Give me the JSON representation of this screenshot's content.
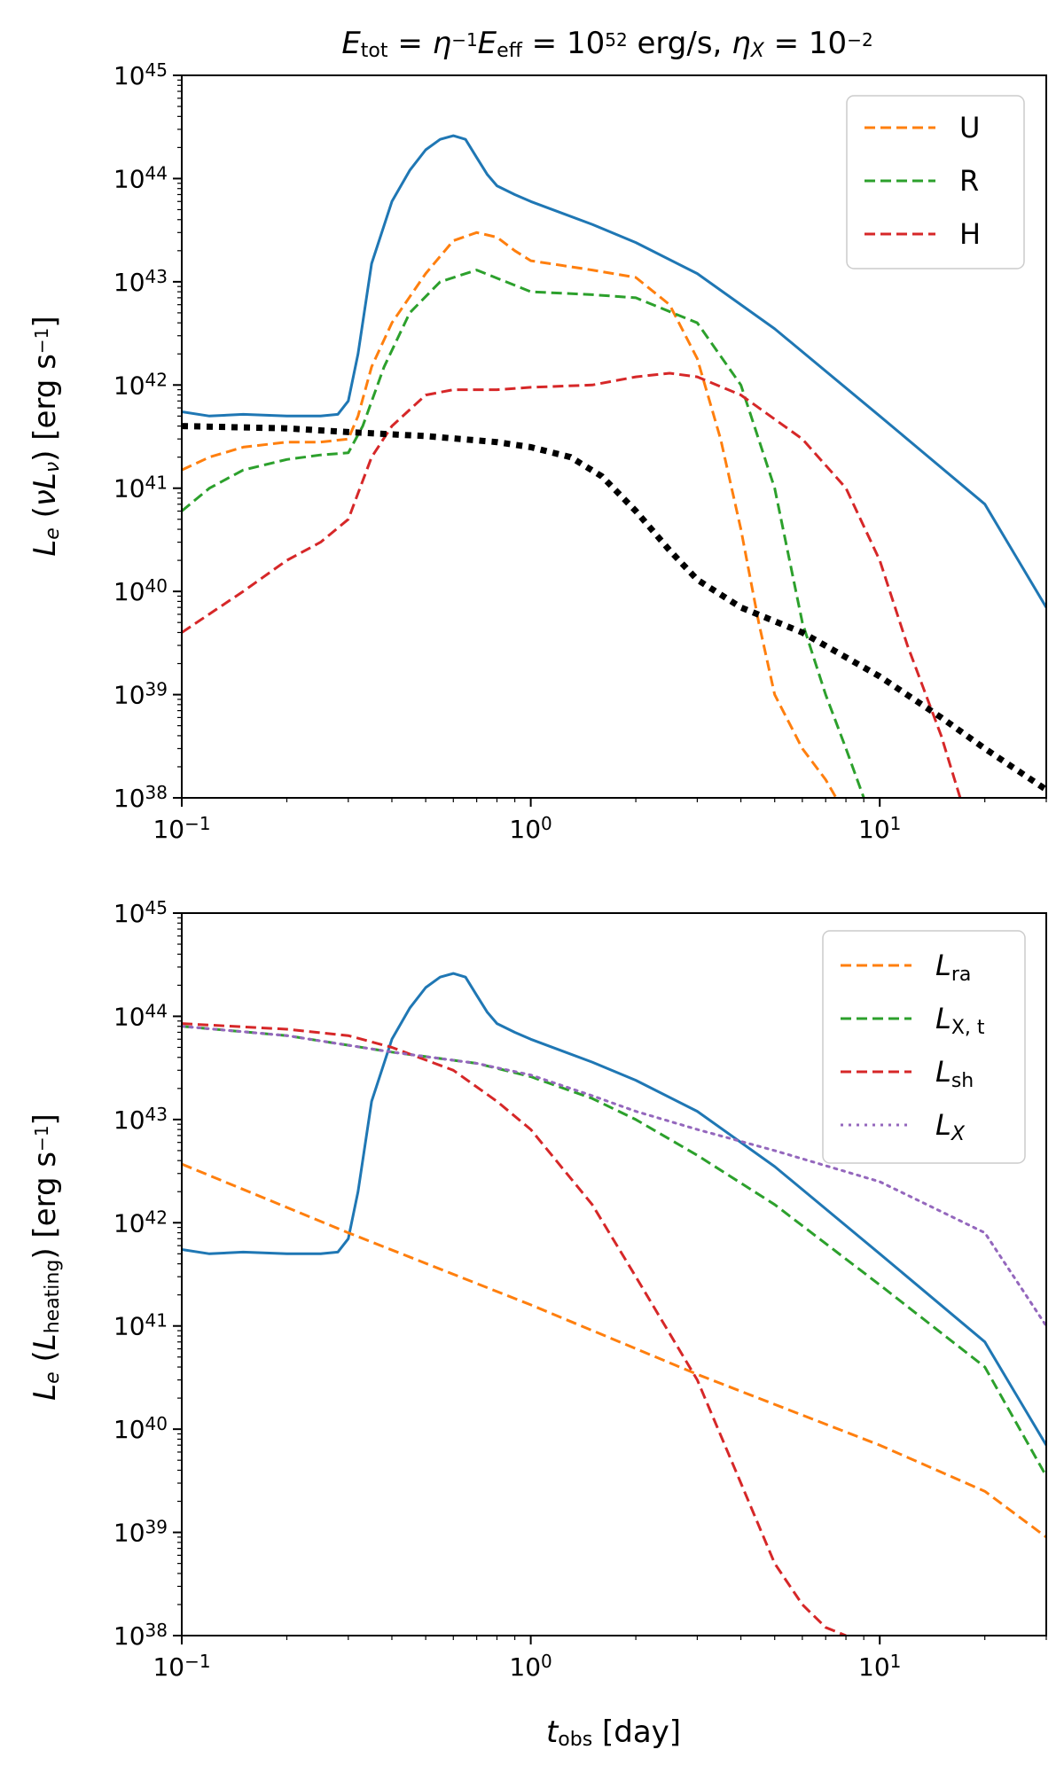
{
  "chart_data": [
    {
      "type": "line",
      "id": "top",
      "title": "E_tot = η^{-1} E_eff = 10^52 erg/s,  η_X = 10^-2",
      "title_parts": {
        "E": "E",
        "tot": "tot",
        "eq": " = ",
        "eta": "η",
        "inv": "−1",
        "Eff": "E",
        "eff": "eff",
        "eq2": " = 10",
        "exp52": "52",
        "unit": " erg/s,  ",
        "etaX": "η",
        "X": "X",
        "eq3": " = 10",
        "expm2": "−2"
      },
      "xscale": "log",
      "yscale": "log",
      "xlim": [
        0.1,
        30
      ],
      "ylim": [
        1e+38,
        1e+45
      ],
      "xlabel": "",
      "ylabel": "L_e (νL_ν) [erg s^-1]",
      "ylabel_parts": {
        "L": "L",
        "e": "e",
        "open": " (",
        "nu": "ν",
        "L2": "L",
        "nusub": "ν",
        "close": ") [erg s",
        "exp": "−1",
        "end": "]"
      },
      "x_ticks": [
        {
          "base": "10",
          "exp": "−1"
        },
        {
          "base": "10",
          "exp": "0"
        },
        {
          "base": "10",
          "exp": "1"
        }
      ],
      "y_ticks": [
        {
          "base": "10",
          "exp": "38"
        },
        {
          "base": "10",
          "exp": "39"
        },
        {
          "base": "10",
          "exp": "40"
        },
        {
          "base": "10",
          "exp": "41"
        },
        {
          "base": "10",
          "exp": "42"
        },
        {
          "base": "10",
          "exp": "43"
        },
        {
          "base": "10",
          "exp": "44"
        },
        {
          "base": "10",
          "exp": "45"
        }
      ],
      "legend_position": "top-right",
      "series": [
        {
          "name": "total",
          "legend": false,
          "color": "#1f77b4",
          "style": "solid",
          "points": [
            [
              0.1,
              5.5e+41
            ],
            [
              0.12,
              5e+41
            ],
            [
              0.15,
              5.2e+41
            ],
            [
              0.2,
              5e+41
            ],
            [
              0.25,
              5e+41
            ],
            [
              0.28,
              5.2e+41
            ],
            [
              0.3,
              7e+41
            ],
            [
              0.32,
              2e+42
            ],
            [
              0.35,
              1.5e+43
            ],
            [
              0.4,
              6e+43
            ],
            [
              0.45,
              1.2e+44
            ],
            [
              0.5,
              1.9e+44
            ],
            [
              0.55,
              2.4e+44
            ],
            [
              0.6,
              2.6e+44
            ],
            [
              0.65,
              2.4e+44
            ],
            [
              0.7,
              1.6e+44
            ],
            [
              0.75,
              1.1e+44
            ],
            [
              0.8,
              8.5e+43
            ],
            [
              0.9,
              7e+43
            ],
            [
              1.0,
              6e+43
            ],
            [
              1.5,
              3.6e+43
            ],
            [
              2.0,
              2.4e+43
            ],
            [
              3.0,
              1.2e+43
            ],
            [
              5.0,
              3.5e+42
            ],
            [
              10,
              5e+41
            ],
            [
              20,
              7e+40
            ],
            [
              30,
              7e+39
            ]
          ]
        },
        {
          "name": "U",
          "legend": true,
          "color": "#ff7f0e",
          "style": "dashed",
          "points": [
            [
              0.1,
              1.5e+41
            ],
            [
              0.12,
              2e+41
            ],
            [
              0.15,
              2.5e+41
            ],
            [
              0.2,
              2.8e+41
            ],
            [
              0.25,
              2.8e+41
            ],
            [
              0.3,
              3e+41
            ],
            [
              0.32,
              5e+41
            ],
            [
              0.35,
              1.5e+42
            ],
            [
              0.4,
              4e+42
            ],
            [
              0.5,
              1.2e+43
            ],
            [
              0.6,
              2.5e+43
            ],
            [
              0.7,
              3e+43
            ],
            [
              0.8,
              2.7e+43
            ],
            [
              0.9,
              2e+43
            ],
            [
              1.0,
              1.6e+43
            ],
            [
              1.5,
              1.3e+43
            ],
            [
              2.0,
              1.1e+43
            ],
            [
              2.5,
              6e+42
            ],
            [
              3.0,
              1.8e+42
            ],
            [
              3.5,
              3e+41
            ],
            [
              4.0,
              4e+40
            ],
            [
              4.5,
              5e+39
            ],
            [
              5.0,
              1e+39
            ],
            [
              6.0,
              3e+38
            ],
            [
              7.0,
              1.5e+38
            ],
            [
              7.5,
              1e+38
            ]
          ]
        },
        {
          "name": "R",
          "legend": true,
          "color": "#2ca02c",
          "style": "dashed",
          "points": [
            [
              0.1,
              6e+40
            ],
            [
              0.12,
              1e+41
            ],
            [
              0.15,
              1.5e+41
            ],
            [
              0.2,
              1.9e+41
            ],
            [
              0.25,
              2.1e+41
            ],
            [
              0.3,
              2.2e+41
            ],
            [
              0.33,
              4e+41
            ],
            [
              0.38,
              1.5e+42
            ],
            [
              0.45,
              5e+42
            ],
            [
              0.55,
              1e+43
            ],
            [
              0.7,
              1.3e+43
            ],
            [
              0.85,
              1e+43
            ],
            [
              1.0,
              8e+42
            ],
            [
              1.5,
              7.5e+42
            ],
            [
              2.0,
              7e+42
            ],
            [
              3.0,
              4e+42
            ],
            [
              4.0,
              1e+42
            ],
            [
              5.0,
              1e+41
            ],
            [
              6.0,
              5e+39
            ],
            [
              7.0,
              1e+39
            ],
            [
              8.0,
              3e+38
            ],
            [
              9.0,
              1e+38
            ]
          ]
        },
        {
          "name": "H",
          "legend": true,
          "color": "#d62728",
          "style": "dashed",
          "points": [
            [
              0.1,
              4e+39
            ],
            [
              0.15,
              1e+40
            ],
            [
              0.2,
              2e+40
            ],
            [
              0.25,
              3e+40
            ],
            [
              0.3,
              5e+40
            ],
            [
              0.35,
              2e+41
            ],
            [
              0.4,
              4e+41
            ],
            [
              0.5,
              8e+41
            ],
            [
              0.6,
              9e+41
            ],
            [
              0.8,
              9e+41
            ],
            [
              1.0,
              9.5e+41
            ],
            [
              1.5,
              1e+42
            ],
            [
              2.0,
              1.2e+42
            ],
            [
              2.5,
              1.3e+42
            ],
            [
              3.0,
              1.2e+42
            ],
            [
              4.0,
              8e+41
            ],
            [
              6.0,
              3e+41
            ],
            [
              8.0,
              1e+41
            ],
            [
              10,
              2e+40
            ],
            [
              12,
              3e+39
            ],
            [
              15,
              4e+38
            ],
            [
              17,
              1e+38
            ]
          ]
        },
        {
          "name": "thermal",
          "legend": false,
          "color": "#000000",
          "style": "dotted",
          "points": [
            [
              0.1,
              4e+41
            ],
            [
              0.2,
              3.8e+41
            ],
            [
              0.3,
              3.5e+41
            ],
            [
              0.5,
              3.2e+41
            ],
            [
              0.8,
              2.8e+41
            ],
            [
              1.0,
              2.5e+41
            ],
            [
              1.3,
              2e+41
            ],
            [
              1.6,
              1.3e+41
            ],
            [
              2.0,
              6e+40
            ],
            [
              2.5,
              2.5e+40
            ],
            [
              3.0,
              1.3e+40
            ],
            [
              4.0,
              7e+39
            ],
            [
              6.0,
              4e+39
            ],
            [
              10,
              1.5e+39
            ],
            [
              15,
              6e+38
            ],
            [
              20,
              3e+38
            ],
            [
              30,
              1.2e+38
            ]
          ]
        }
      ],
      "legend_labels": {
        "U": "U",
        "R": "R",
        "H": "H"
      }
    },
    {
      "type": "line",
      "id": "bottom",
      "title": "",
      "xscale": "log",
      "yscale": "log",
      "xlim": [
        0.1,
        30
      ],
      "ylim": [
        1e+38,
        1e+45
      ],
      "xlabel": "t_obs [day]",
      "xlabel_parts": {
        "t": "t",
        "sub": "obs",
        "rest": " [day]"
      },
      "ylabel": "L_e (L_heating) [erg s^-1]",
      "ylabel_parts": {
        "L": "L",
        "e": "e",
        "open": " (",
        "L2": "L",
        "sub": "heating",
        "close": ") [erg s",
        "exp": "−1",
        "end": "]"
      },
      "x_ticks": [
        {
          "base": "10",
          "exp": "−1"
        },
        {
          "base": "10",
          "exp": "0"
        },
        {
          "base": "10",
          "exp": "1"
        }
      ],
      "y_ticks": [
        {
          "base": "10",
          "exp": "38"
        },
        {
          "base": "10",
          "exp": "39"
        },
        {
          "base": "10",
          "exp": "40"
        },
        {
          "base": "10",
          "exp": "41"
        },
        {
          "base": "10",
          "exp": "42"
        },
        {
          "base": "10",
          "exp": "43"
        },
        {
          "base": "10",
          "exp": "44"
        },
        {
          "base": "10",
          "exp": "45"
        }
      ],
      "legend_position": "top-right",
      "series": [
        {
          "name": "total",
          "legend": false,
          "color": "#1f77b4",
          "style": "solid",
          "points": [
            [
              0.1,
              5.5e+41
            ],
            [
              0.12,
              5e+41
            ],
            [
              0.15,
              5.2e+41
            ],
            [
              0.2,
              5e+41
            ],
            [
              0.25,
              5e+41
            ],
            [
              0.28,
              5.2e+41
            ],
            [
              0.3,
              7e+41
            ],
            [
              0.32,
              2e+42
            ],
            [
              0.35,
              1.5e+43
            ],
            [
              0.4,
              6e+43
            ],
            [
              0.45,
              1.2e+44
            ],
            [
              0.5,
              1.9e+44
            ],
            [
              0.55,
              2.4e+44
            ],
            [
              0.6,
              2.6e+44
            ],
            [
              0.65,
              2.4e+44
            ],
            [
              0.7,
              1.6e+44
            ],
            [
              0.75,
              1.1e+44
            ],
            [
              0.8,
              8.5e+43
            ],
            [
              0.9,
              7e+43
            ],
            [
              1.0,
              6e+43
            ],
            [
              1.5,
              3.6e+43
            ],
            [
              2.0,
              2.4e+43
            ],
            [
              3.0,
              1.2e+43
            ],
            [
              5.0,
              3.5e+42
            ],
            [
              10,
              5e+41
            ],
            [
              20,
              7e+40
            ],
            [
              30,
              7e+39
            ]
          ]
        },
        {
          "name": "L_ra",
          "legend": true,
          "color": "#ff7f0e",
          "style": "dashed",
          "points": [
            [
              0.1,
              3.7e+42
            ],
            [
              0.3,
              8e+41
            ],
            [
              1.0,
              1.6e+41
            ],
            [
              3.0,
              3.4e+40
            ],
            [
              10,
              7e+39
            ],
            [
              20,
              2.5e+39
            ],
            [
              30,
              9e+38
            ]
          ]
        },
        {
          "name": "L_X,t",
          "legend": true,
          "color": "#2ca02c",
          "style": "dashed",
          "points": [
            [
              0.1,
              8e+43
            ],
            [
              0.2,
              6.5e+43
            ],
            [
              0.4,
              4.5e+43
            ],
            [
              0.7,
              3.5e+43
            ],
            [
              1.0,
              2.6e+43
            ],
            [
              1.5,
              1.6e+43
            ],
            [
              2.0,
              1e+43
            ],
            [
              3.0,
              4.5e+42
            ],
            [
              5.0,
              1.5e+42
            ],
            [
              10,
              2.5e+41
            ],
            [
              20,
              4e+40
            ],
            [
              30,
              3.5e+39
            ]
          ]
        },
        {
          "name": "L_sh",
          "legend": true,
          "color": "#d62728",
          "style": "dashed",
          "points": [
            [
              0.1,
              8.5e+43
            ],
            [
              0.2,
              7.5e+43
            ],
            [
              0.3,
              6.5e+43
            ],
            [
              0.4,
              5e+43
            ],
            [
              0.6,
              3e+43
            ],
            [
              0.8,
              1.5e+43
            ],
            [
              1.0,
              8e+42
            ],
            [
              1.5,
              1.5e+42
            ],
            [
              2.0,
              3e+41
            ],
            [
              3.0,
              3e+40
            ],
            [
              4.0,
              3e+39
            ],
            [
              5.0,
              5e+38
            ],
            [
              6.0,
              2e+38
            ],
            [
              7.0,
              1.2e+38
            ],
            [
              8.0,
              1e+38
            ]
          ]
        },
        {
          "name": "L_X",
          "legend": true,
          "color": "#9467bd",
          "style": "dotted",
          "points": [
            [
              0.1,
              8e+43
            ],
            [
              0.2,
              6.5e+43
            ],
            [
              0.4,
              4.5e+43
            ],
            [
              0.7,
              3.5e+43
            ],
            [
              1.0,
              2.7e+43
            ],
            [
              1.5,
              1.7e+43
            ],
            [
              2.0,
              1.2e+43
            ],
            [
              3.0,
              8e+42
            ],
            [
              5.0,
              5e+42
            ],
            [
              10,
              2.5e+42
            ],
            [
              20,
              8e+41
            ],
            [
              30,
              1e+41
            ]
          ]
        }
      ],
      "legend_labels": {
        "L_ra": {
          "main": "L",
          "sub": "ra"
        },
        "L_X,t": {
          "main": "L",
          "sub": "X, t"
        },
        "L_sh": {
          "main": "L",
          "sub": "sh"
        },
        "L_X": {
          "main": "L",
          "sub": "X"
        }
      }
    }
  ]
}
